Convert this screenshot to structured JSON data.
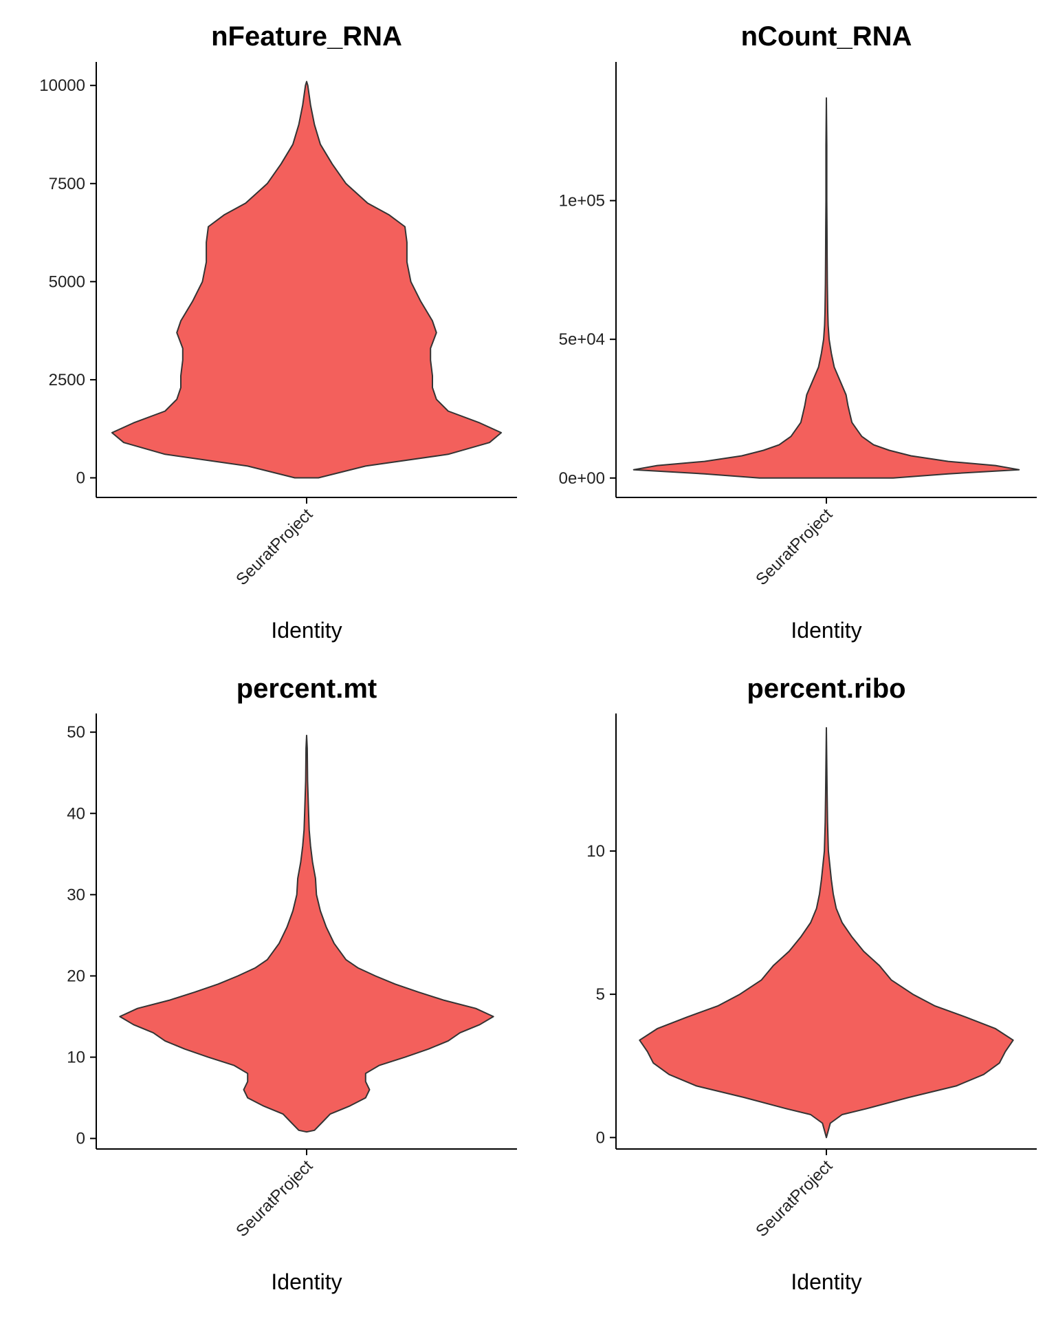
{
  "chart_data": [
    {
      "type": "violin",
      "title": "nFeature_RNA",
      "xlabel": "Identity",
      "ylabel": "",
      "categories": [
        "SeuratProject"
      ],
      "ylim": [
        -500,
        10600
      ],
      "yticks": [
        0,
        2500,
        5000,
        7500,
        10000
      ],
      "ytick_labels": [
        "0",
        "2500",
        "5000",
        "7500",
        "10000"
      ],
      "fill": "#F3605C",
      "outline": "#333333",
      "density_profile": [
        [
          0,
          0.06
        ],
        [
          300,
          0.3
        ],
        [
          600,
          0.72
        ],
        [
          900,
          0.93
        ],
        [
          1150,
          0.99
        ],
        [
          1400,
          0.88
        ],
        [
          1700,
          0.72
        ],
        [
          2000,
          0.66
        ],
        [
          2300,
          0.64
        ],
        [
          2600,
          0.64
        ],
        [
          3000,
          0.63
        ],
        [
          3300,
          0.63
        ],
        [
          3700,
          0.66
        ],
        [
          4000,
          0.64
        ],
        [
          4500,
          0.58
        ],
        [
          5000,
          0.53
        ],
        [
          5500,
          0.51
        ],
        [
          6000,
          0.51
        ],
        [
          6400,
          0.5
        ],
        [
          6700,
          0.42
        ],
        [
          7000,
          0.31
        ],
        [
          7500,
          0.2
        ],
        [
          8000,
          0.13
        ],
        [
          8500,
          0.07
        ],
        [
          9000,
          0.04
        ],
        [
          9500,
          0.02
        ],
        [
          10000,
          0.006
        ],
        [
          10100,
          0.0
        ]
      ]
    },
    {
      "type": "violin",
      "title": "nCount_RNA",
      "xlabel": "Identity",
      "ylabel": "",
      "categories": [
        "SeuratProject"
      ],
      "ylim": [
        -7000,
        150000
      ],
      "yticks": [
        0,
        50000,
        100000
      ],
      "ytick_labels": [
        "0e+00",
        "5e+04",
        "1e+05"
      ],
      "fill": "#F3605C",
      "outline": "#333333",
      "density_profile": [
        [
          0,
          0.34
        ],
        [
          1500,
          0.62
        ],
        [
          3000,
          0.98
        ],
        [
          4500,
          0.86
        ],
        [
          6000,
          0.62
        ],
        [
          8000,
          0.43
        ],
        [
          10000,
          0.32
        ],
        [
          12000,
          0.24
        ],
        [
          15000,
          0.18
        ],
        [
          18000,
          0.15
        ],
        [
          20000,
          0.13
        ],
        [
          23000,
          0.12
        ],
        [
          26000,
          0.11
        ],
        [
          30000,
          0.1
        ],
        [
          35000,
          0.07
        ],
        [
          40000,
          0.04
        ],
        [
          45000,
          0.025
        ],
        [
          50000,
          0.014
        ],
        [
          55000,
          0.009
        ],
        [
          60000,
          0.007
        ],
        [
          70000,
          0.005
        ],
        [
          80000,
          0.004
        ],
        [
          90000,
          0.003
        ],
        [
          100000,
          0.002
        ],
        [
          120000,
          0.002
        ],
        [
          137000,
          0.0
        ]
      ]
    },
    {
      "type": "violin",
      "title": "percent.mt",
      "xlabel": "Identity",
      "ylabel": "",
      "categories": [
        "SeuratProject"
      ],
      "ylim": [
        -1.3,
        52.3
      ],
      "yticks": [
        0,
        10,
        20,
        30,
        40,
        50
      ],
      "ytick_labels": [
        "0",
        "10",
        "20",
        "30",
        "40",
        "50"
      ],
      "fill": "#F3605C",
      "outline": "#333333",
      "density_profile": [
        [
          0.8,
          0.0
        ],
        [
          1.0,
          0.04
        ],
        [
          2.0,
          0.08
        ],
        [
          3.0,
          0.12
        ],
        [
          4.0,
          0.22
        ],
        [
          5.0,
          0.3
        ],
        [
          6.0,
          0.32
        ],
        [
          7.0,
          0.3
        ],
        [
          8.0,
          0.3
        ],
        [
          9.0,
          0.37
        ],
        [
          10.0,
          0.5
        ],
        [
          11.0,
          0.62
        ],
        [
          12.0,
          0.72
        ],
        [
          13.0,
          0.78
        ],
        [
          14.0,
          0.88
        ],
        [
          15.0,
          0.95
        ],
        [
          16.0,
          0.86
        ],
        [
          17.0,
          0.7
        ],
        [
          18.0,
          0.57
        ],
        [
          19.0,
          0.45
        ],
        [
          20.0,
          0.35
        ],
        [
          21.0,
          0.26
        ],
        [
          22.0,
          0.2
        ],
        [
          24.0,
          0.14
        ],
        [
          26.0,
          0.1
        ],
        [
          28.0,
          0.07
        ],
        [
          30.0,
          0.05
        ],
        [
          32.0,
          0.045
        ],
        [
          34.0,
          0.03
        ],
        [
          36.0,
          0.02
        ],
        [
          38.0,
          0.013
        ],
        [
          40.0,
          0.01
        ],
        [
          44.0,
          0.005
        ],
        [
          48.0,
          0.003
        ],
        [
          49.6,
          0.0
        ]
      ]
    },
    {
      "type": "violin",
      "title": "percent.ribo",
      "xlabel": "Identity",
      "ylabel": "",
      "categories": [
        "SeuratProject"
      ],
      "ylim": [
        -0.4,
        14.8
      ],
      "yticks": [
        0,
        5,
        10
      ],
      "ytick_labels": [
        "0",
        "5",
        "10"
      ],
      "fill": "#F3605C",
      "outline": "#333333",
      "density_profile": [
        [
          0.0,
          0.0
        ],
        [
          0.5,
          0.02
        ],
        [
          0.8,
          0.08
        ],
        [
          1.0,
          0.2
        ],
        [
          1.4,
          0.42
        ],
        [
          1.8,
          0.66
        ],
        [
          2.2,
          0.8
        ],
        [
          2.6,
          0.88
        ],
        [
          3.0,
          0.91
        ],
        [
          3.4,
          0.95
        ],
        [
          3.8,
          0.86
        ],
        [
          4.2,
          0.71
        ],
        [
          4.6,
          0.55
        ],
        [
          5.0,
          0.44
        ],
        [
          5.5,
          0.33
        ],
        [
          6.0,
          0.27
        ],
        [
          6.5,
          0.19
        ],
        [
          7.0,
          0.13
        ],
        [
          7.5,
          0.08
        ],
        [
          8.0,
          0.05
        ],
        [
          8.5,
          0.035
        ],
        [
          9.0,
          0.025
        ],
        [
          10.0,
          0.01
        ],
        [
          11.0,
          0.006
        ],
        [
          12.0,
          0.004
        ],
        [
          14.3,
          0.0
        ]
      ]
    }
  ]
}
